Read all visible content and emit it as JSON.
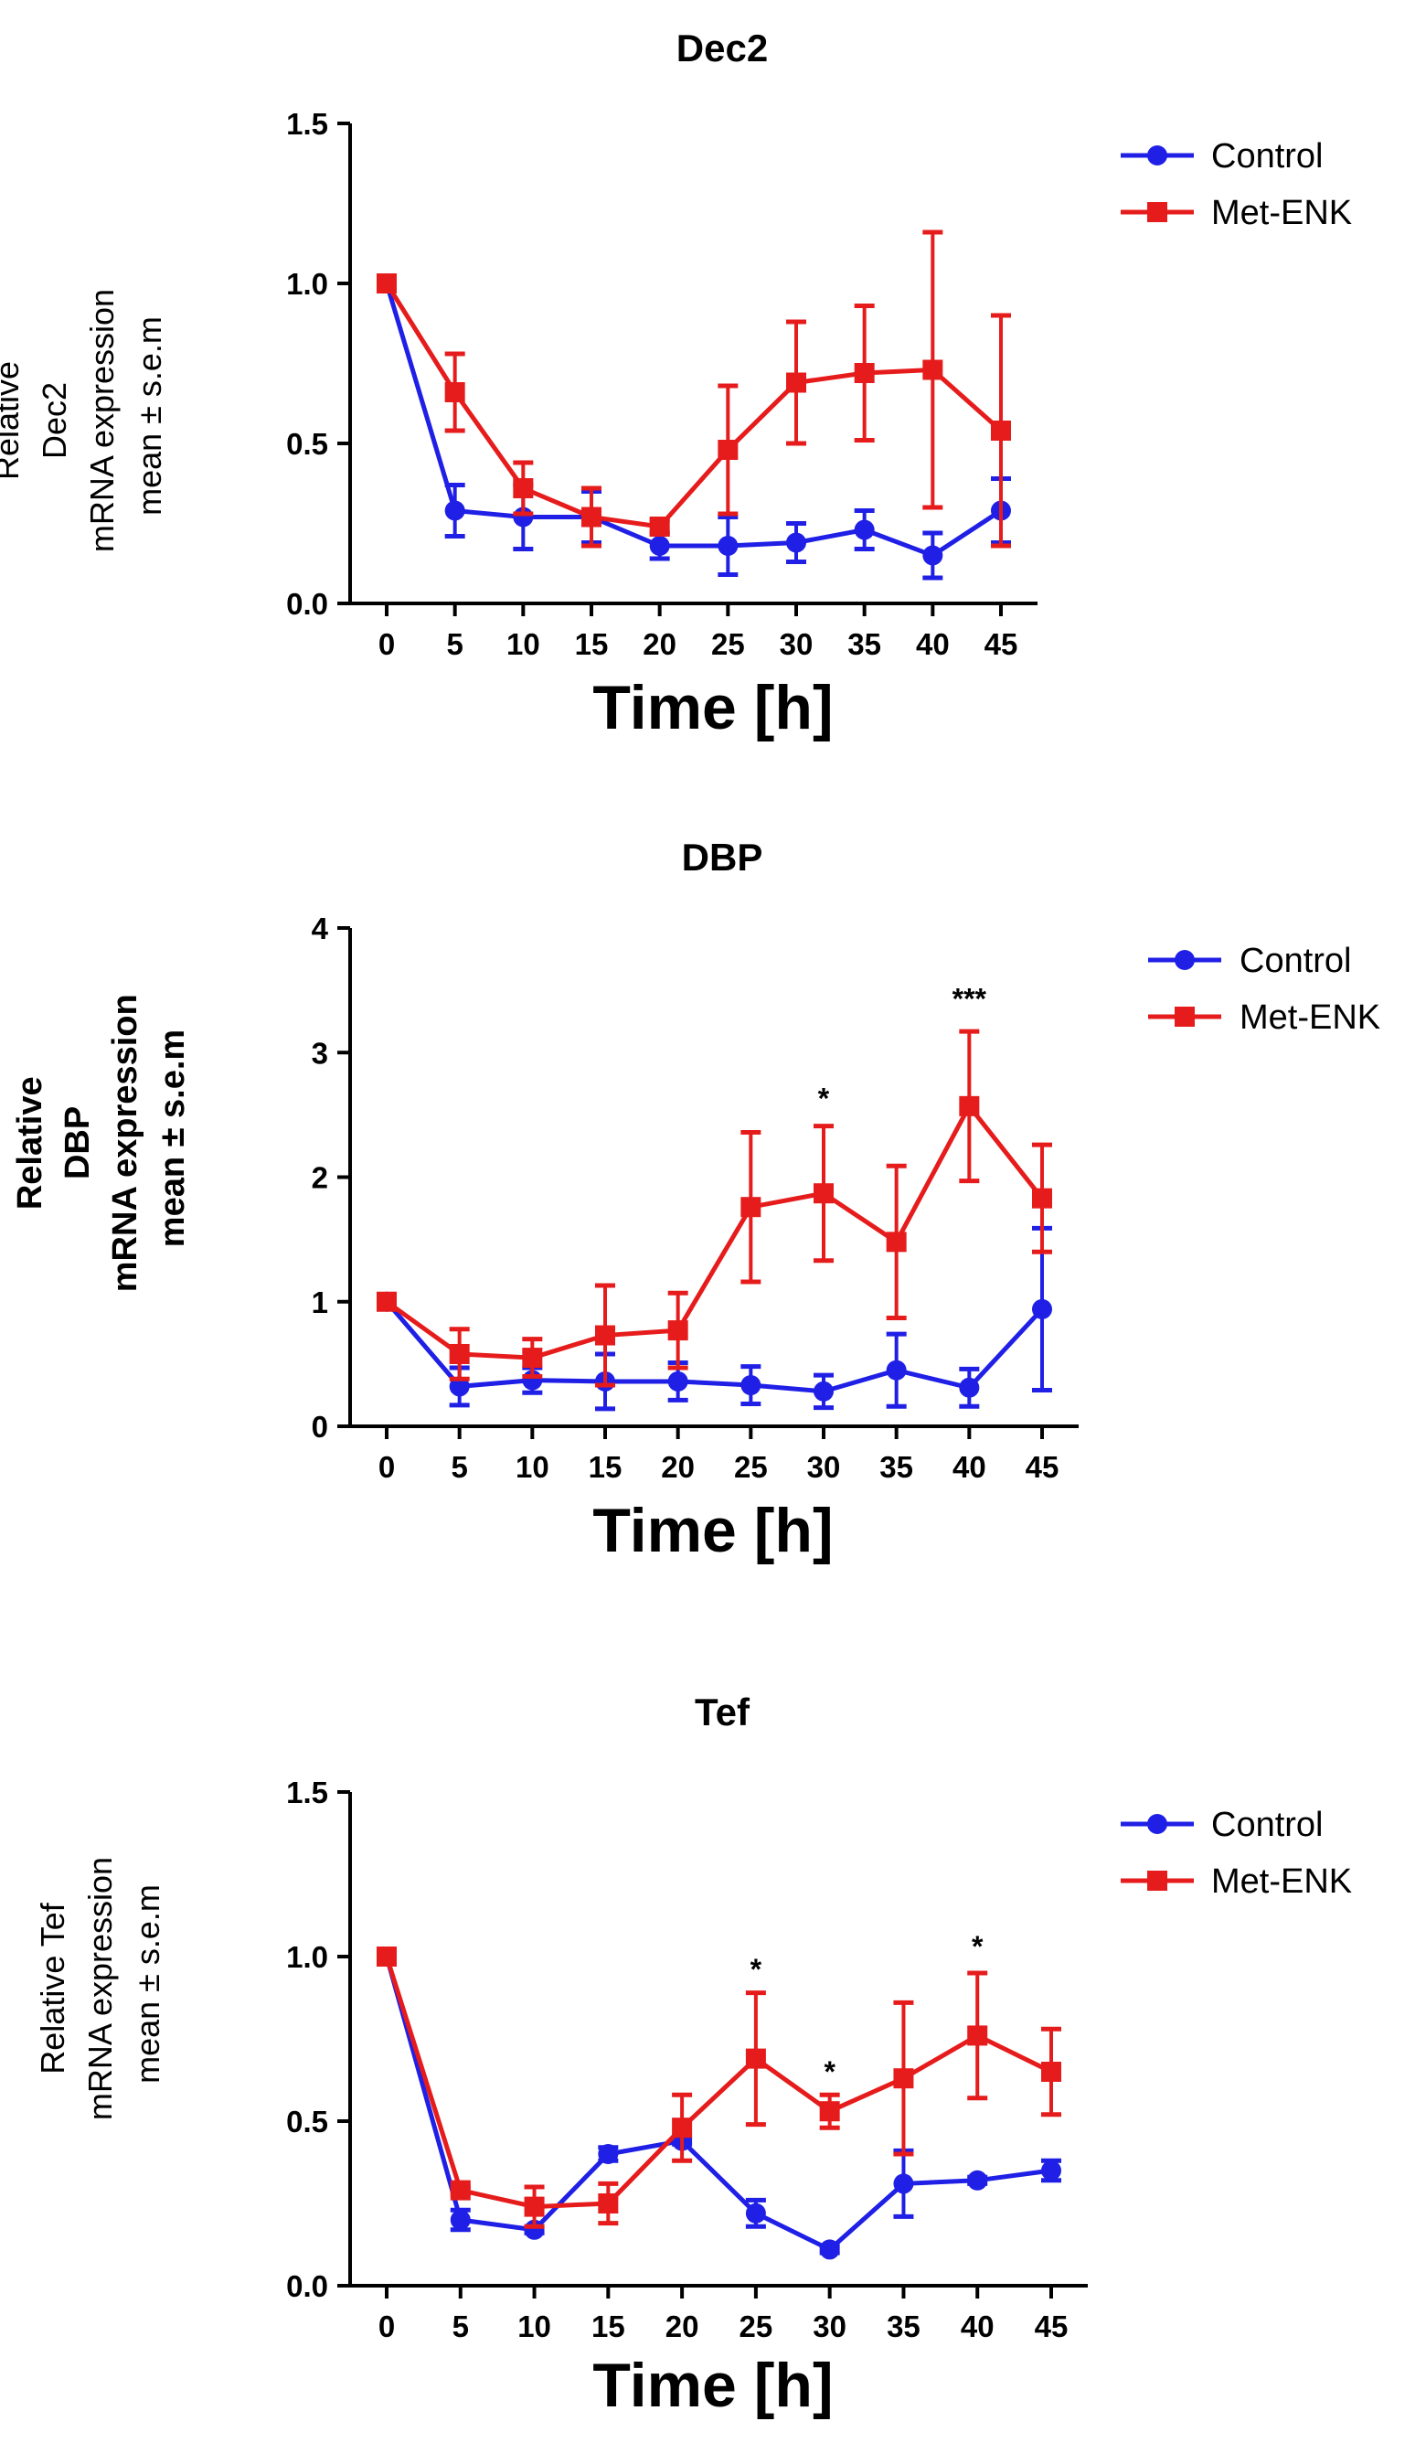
{
  "chart_data": [
    {
      "type": "line",
      "title": "Dec2",
      "xlabel": "Time [h]",
      "ylabel": [
        "Relative",
        "Dec2",
        "mRNA expression",
        "mean ± s.e.m"
      ],
      "ylabel_bold": false,
      "x": [
        0,
        5,
        10,
        15,
        20,
        25,
        30,
        35,
        40,
        45
      ],
      "x_ticks": [
        "0",
        "5",
        "10",
        "15",
        "20",
        "25",
        "30",
        "35",
        "40",
        "45"
      ],
      "ylim": [
        0,
        1.5
      ],
      "y_ticks": [
        "0.0",
        "0.5",
        "1.0",
        "1.5"
      ],
      "legend_position": "top-right",
      "series": [
        {
          "name": "Control",
          "color": "#1f1fe6",
          "marker": "circle",
          "values": [
            1.0,
            0.29,
            0.27,
            0.27,
            0.18,
            0.18,
            0.19,
            0.23,
            0.15,
            0.29
          ],
          "errors": [
            0.0,
            0.08,
            0.1,
            0.08,
            0.04,
            0.09,
            0.06,
            0.06,
            0.07,
            0.1
          ]
        },
        {
          "name": "Met-ENK",
          "color": "#e61c1c",
          "marker": "square",
          "values": [
            1.0,
            0.66,
            0.36,
            0.27,
            0.24,
            0.48,
            0.69,
            0.72,
            0.73,
            0.54
          ],
          "errors": [
            0.0,
            0.12,
            0.08,
            0.09,
            0.02,
            0.2,
            0.19,
            0.21,
            0.43,
            0.36
          ]
        }
      ],
      "annotations": []
    },
    {
      "type": "line",
      "title": "DBP",
      "xlabel": "Time [h]",
      "ylabel": [
        "Relative",
        "DBP",
        "mRNA expression",
        "mean ± s.e.m"
      ],
      "ylabel_bold": true,
      "x": [
        0,
        5,
        10,
        15,
        20,
        25,
        30,
        35,
        40,
        45
      ],
      "x_ticks": [
        "0",
        "5",
        "10",
        "15",
        "20",
        "25",
        "30",
        "35",
        "40",
        "45"
      ],
      "ylim": [
        0,
        4
      ],
      "y_ticks": [
        "0",
        "1",
        "2",
        "3",
        "4"
      ],
      "legend_position": "top-right",
      "series": [
        {
          "name": "Control",
          "color": "#1f1fe6",
          "marker": "circle",
          "values": [
            1.0,
            0.32,
            0.37,
            0.36,
            0.36,
            0.33,
            0.28,
            0.45,
            0.31,
            0.94
          ],
          "errors": [
            0.0,
            0.15,
            0.1,
            0.22,
            0.15,
            0.15,
            0.13,
            0.29,
            0.15,
            0.65
          ]
        },
        {
          "name": "Met-ENK",
          "color": "#e61c1c",
          "marker": "square",
          "values": [
            1.0,
            0.58,
            0.55,
            0.73,
            0.77,
            1.76,
            1.87,
            1.48,
            2.57,
            1.83
          ],
          "errors": [
            0.0,
            0.2,
            0.15,
            0.4,
            0.3,
            0.6,
            0.54,
            0.61,
            0.6,
            0.43
          ]
        }
      ],
      "annotations": [
        {
          "x": 30,
          "y": 2.55,
          "text": "*"
        },
        {
          "x": 40,
          "y": 3.35,
          "text": "***"
        }
      ]
    },
    {
      "type": "line",
      "title": "Tef",
      "xlabel": "Time [h]",
      "ylabel": [
        "Relative Tef",
        "mRNA expression",
        "mean ± s.e.m"
      ],
      "ylabel_bold": false,
      "x": [
        0,
        5,
        10,
        15,
        20,
        25,
        30,
        35,
        40,
        45
      ],
      "x_ticks": [
        "0",
        "5",
        "10",
        "15",
        "20",
        "25",
        "30",
        "35",
        "40",
        "45"
      ],
      "ylim": [
        0,
        1.5
      ],
      "y_ticks": [
        "0.0",
        "0.5",
        "1.0",
        "1.5"
      ],
      "legend_position": "top-right",
      "series": [
        {
          "name": "Control",
          "color": "#1f1fe6",
          "marker": "circle",
          "values": [
            1.0,
            0.2,
            0.17,
            0.4,
            0.44,
            0.22,
            0.11,
            0.31,
            0.32,
            0.35
          ],
          "errors": [
            0.0,
            0.03,
            0.01,
            0.02,
            0.01,
            0.04,
            0.01,
            0.1,
            0.01,
            0.03
          ]
        },
        {
          "name": "Met-ENK",
          "color": "#e61c1c",
          "marker": "square",
          "values": [
            1.0,
            0.29,
            0.24,
            0.25,
            0.48,
            0.69,
            0.53,
            0.63,
            0.76,
            0.65
          ],
          "errors": [
            0.0,
            0.01,
            0.06,
            0.06,
            0.1,
            0.2,
            0.05,
            0.23,
            0.19,
            0.13
          ]
        }
      ],
      "annotations": [
        {
          "x": 25,
          "y": 0.93,
          "text": "*"
        },
        {
          "x": 30,
          "y": 0.62,
          "text": "*"
        },
        {
          "x": 40,
          "y": 1.0,
          "text": "*"
        }
      ]
    }
  ]
}
